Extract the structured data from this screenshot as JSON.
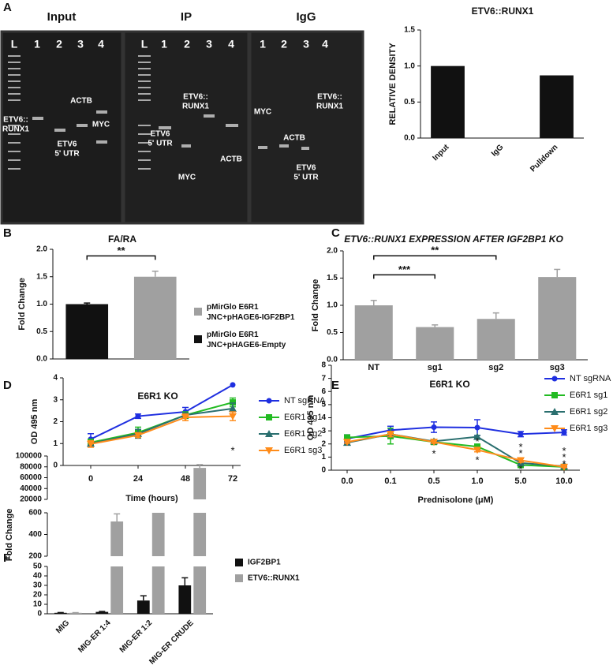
{
  "panel_labels": [
    "A",
    "B",
    "C",
    "D",
    "E",
    "F"
  ],
  "gel": {
    "panels": [
      {
        "title": "Input",
        "lanes": [
          "L",
          "1",
          "2",
          "3",
          "4"
        ],
        "bands": [
          [
            "ETV6::",
            "RUNX1"
          ],
          [
            "ACTB"
          ],
          [
            "MYC"
          ],
          [
            "ETV6",
            "5' UTR"
          ]
        ]
      },
      {
        "title": "IP",
        "lanes": [
          "L",
          "1",
          "2",
          "3",
          "4"
        ],
        "bands": [
          [
            "ETV6",
            "5' UTR"
          ],
          [
            "ETV6::",
            "RUNX1"
          ],
          [
            "ACTB"
          ],
          [
            "MYC"
          ]
        ]
      },
      {
        "title": "IgG",
        "lanes": [
          "1",
          "2",
          "3",
          "4"
        ],
        "bands": [
          [
            "MYC"
          ],
          [
            "ACTB"
          ],
          [
            "ETV6::",
            "RUNX1"
          ],
          [
            "ETV6",
            "5' UTR"
          ]
        ]
      }
    ]
  },
  "chart_data": [
    {
      "type": "bar",
      "title": "ETV6::RUNX1",
      "ylabel": "RELATIVE DENSITY",
      "categories": [
        "Input",
        "IgG",
        "Pulldown"
      ],
      "values": [
        1.0,
        0,
        0.87
      ],
      "color": "#111111",
      "ylim": [
        0,
        1.5
      ],
      "yticks": [
        {
          "value": 0,
          "label": "0.0"
        },
        {
          "value": 0.5,
          "label": "0.5"
        },
        {
          "value": 1,
          "label": "1.0"
        },
        {
          "value": 1.5,
          "label": "1.5"
        }
      ]
    },
    {
      "type": "bar",
      "title": "FA/RA",
      "ylabel": "Fold Change",
      "series": [
        {
          "name": "pMirGlo E6R1 JNC+pHAGE6-IGF2BP1",
          "color": "#a0a0a0",
          "values": [
            1.5
          ],
          "errors": [
            0.1
          ]
        },
        {
          "name": "pMirGlo E6R1 JNC+pHAGE6-Empty",
          "color": "#111111",
          "values": [
            1.0
          ],
          "errors": [
            0.02
          ]
        }
      ],
      "ylim": [
        0,
        2
      ],
      "yticks": [
        {
          "value": 0,
          "label": "0.0"
        },
        {
          "value": 0.5,
          "label": "0.5"
        },
        {
          "value": 1,
          "label": "1.0"
        },
        {
          "value": 1.5,
          "label": "1.5"
        },
        {
          "value": 2,
          "label": "2.0"
        }
      ],
      "significance": [
        {
          "label": "**",
          "from": 0,
          "to": 1,
          "y": 1.88
        }
      ]
    },
    {
      "type": "bar",
      "title": "ETV6::RUNX1 EXPRESSION AFTER IGF2BP1 KO",
      "ylabel": "Fold Change",
      "categories": [
        "NT",
        "sg1",
        "sg2",
        "sg3"
      ],
      "values": [
        1.0,
        0.6,
        0.75,
        1.52
      ],
      "errors": [
        0.09,
        0.04,
        0.11,
        0.14
      ],
      "color": "#a0a0a0",
      "ylim": [
        0,
        2
      ],
      "yticks": [
        {
          "value": 0,
          "label": "0.0"
        },
        {
          "value": 0.5,
          "label": "0.5"
        },
        {
          "value": 1,
          "label": "1.0"
        },
        {
          "value": 1.5,
          "label": "1.5"
        },
        {
          "value": 2,
          "label": "2.0"
        }
      ],
      "significance": [
        {
          "label": "***",
          "from": 0,
          "to": 1,
          "y": 1.56
        },
        {
          "label": "**",
          "from": 0,
          "to": 2,
          "y": 1.91
        }
      ]
    },
    {
      "type": "line",
      "title": "E6R1 KO",
      "xlabel": "Time (hours)",
      "ylabel": "OD 495 nm",
      "x": [
        0,
        24,
        48,
        72
      ],
      "xlim": [
        -14,
        76
      ],
      "xticks": [
        0,
        24,
        48,
        72
      ],
      "ylim": [
        0,
        4
      ],
      "yticks": [
        0,
        1,
        2,
        3,
        4
      ],
      "series": [
        {
          "name": "NT sgRNA",
          "color": "#1f2fe0",
          "marker": "circle",
          "values": [
            1.2,
            2.25,
            2.45,
            3.68
          ],
          "errors": [
            0.25,
            0.1,
            0.2,
            0
          ]
        },
        {
          "name": "E6R1 sg1",
          "color": "#22bb22",
          "marker": "square",
          "values": [
            1.05,
            1.5,
            2.3,
            2.88
          ],
          "errors": [
            0.15,
            0.25,
            0.15,
            0.2
          ]
        },
        {
          "name": "E6R1 sg2",
          "color": "#2a6f6f",
          "marker": "triangle",
          "values": [
            1.0,
            1.45,
            2.3,
            2.6
          ],
          "errors": [
            0.1,
            0.2,
            0.1,
            0.25
          ]
        },
        {
          "name": "E6R1 sg3",
          "color": "#ff8c1a",
          "marker": "triangle-down",
          "values": [
            0.98,
            1.38,
            2.2,
            2.25
          ],
          "errors": [
            0.15,
            0.1,
            0.15,
            0.2
          ]
        }
      ],
      "annotations": [
        {
          "text": "*",
          "x": 72,
          "y": 0.75
        }
      ]
    },
    {
      "type": "line",
      "title": "E6R1 KO",
      "xlabel": "Prednisolone (μM)",
      "ylabel": "OD 495 nm",
      "categories": [
        "0.0",
        "0.1",
        "0.5",
        "1.0",
        "5.0",
        "10.0"
      ],
      "ylim": [
        0,
        8
      ],
      "yticks": [
        0,
        1,
        2,
        3,
        4,
        5,
        6,
        7,
        8
      ],
      "series": [
        {
          "name": "NT sgRNA",
          "color": "#1f2fe0",
          "marker": "circle",
          "values": [
            2.4,
            3.05,
            3.28,
            3.25,
            2.75,
            2.88
          ],
          "errors": [
            0.3,
            0.3,
            0.4,
            0.6,
            0.2,
            0.2
          ]
        },
        {
          "name": "E6R1 sg1",
          "color": "#22bb22",
          "marker": "square",
          "values": [
            2.5,
            2.6,
            2.15,
            1.8,
            0.4,
            0.25
          ],
          "errors": [
            0.1,
            0.6,
            0.15,
            0.1,
            0.2,
            0.05
          ]
        },
        {
          "name": "E6R1 sg2",
          "color": "#2a6f6f",
          "marker": "triangle",
          "values": [
            2.1,
            2.75,
            2.2,
            2.55,
            0.55,
            0.3
          ],
          "errors": [
            0.1,
            0.2,
            0.1,
            0.1,
            0.15,
            0.05
          ]
        },
        {
          "name": "E6R1 sg3",
          "color": "#ff8c1a",
          "marker": "triangle-down",
          "values": [
            2.15,
            2.75,
            2.15,
            1.55,
            0.75,
            0.25
          ],
          "errors": [
            0.1,
            0.2,
            0.1,
            0.15,
            0.15,
            0.05
          ]
        }
      ],
      "annotations": [
        {
          "text": "*",
          "x": 2,
          "y": 1.37
        },
        {
          "text": "*",
          "x": 3,
          "y": 2.3
        },
        {
          "text": "*",
          "x": 3,
          "y": 0.9
        },
        {
          "text": "*",
          "x": 4,
          "y": 1.9
        },
        {
          "text": "*",
          "x": 4,
          "y": 1.4
        },
        {
          "text": "*",
          "x": 4,
          "y": 0.2
        },
        {
          "text": "*",
          "x": 5,
          "y": 1.6
        },
        {
          "text": "*",
          "x": 5,
          "y": 1.1
        },
        {
          "text": "*",
          "x": 5,
          "y": 0.6
        }
      ]
    },
    {
      "type": "bar",
      "ylabel": "Fold Change",
      "categories": [
        "MIG",
        "MIG-ER 1:4",
        "MIG-ER 1:2",
        "MIG-ER CRUDE"
      ],
      "series": [
        {
          "name": "IGF2BP1",
          "color": "#111111",
          "values": [
            1,
            2,
            14,
            30
          ],
          "errors": [
            0.3,
            0.5,
            5,
            8
          ]
        },
        {
          "name": "ETV6::RUNX1",
          "color": "#a0a0a0",
          "values": [
            1,
            520,
            700,
            78000
          ],
          "errors": [
            0.2,
            70,
            50,
            6000
          ]
        }
      ],
      "ysegments": [
        {
          "ylim": [
            0,
            50
          ],
          "yticks": [
            0,
            10,
            20,
            30,
            40,
            50
          ]
        },
        {
          "ylim": [
            200,
            600
          ],
          "yticks": [
            200,
            400,
            600
          ]
        },
        {
          "ylim": [
            20000,
            100000
          ],
          "yticks": [
            20000,
            40000,
            60000,
            80000,
            100000
          ]
        }
      ]
    }
  ]
}
